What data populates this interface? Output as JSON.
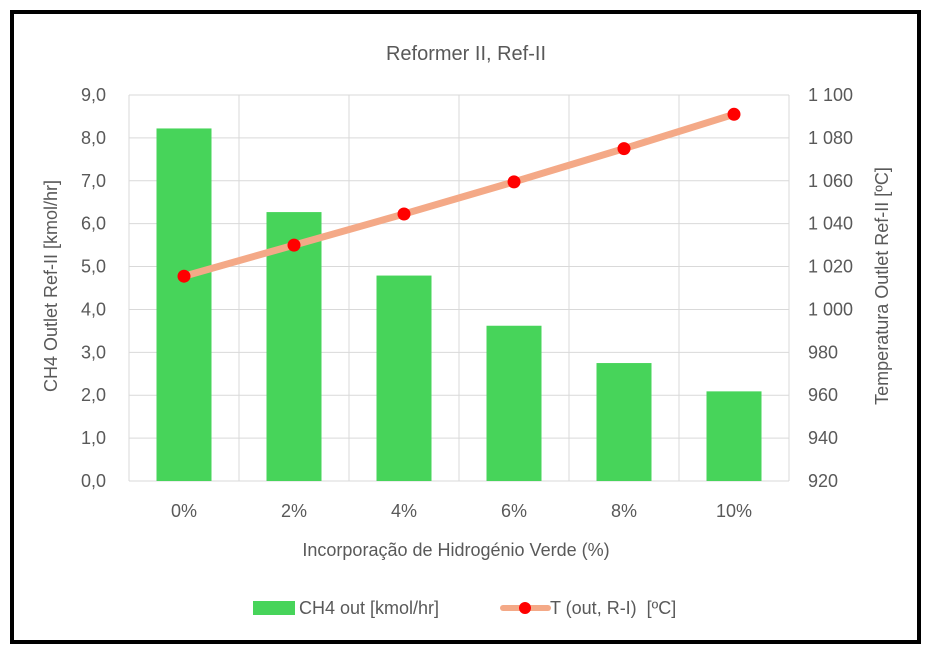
{
  "chart_data": {
    "type": "bar+line",
    "title": "Reformer II, Ref-II",
    "xlabel": "Incorporação de Hidrogénio Verde (%)",
    "ylabel_left": "CH4 Outlet Ref-II [kmol/hr]",
    "ylabel_right": "Temperatura Outlet Ref-II [ºC]",
    "categories": [
      "0%",
      "2%",
      "4%",
      "6%",
      "8%",
      "10%"
    ],
    "y_left": {
      "min": 0,
      "max": 9,
      "step": 1,
      "tick_labels": [
        "0,0",
        "1,0",
        "2,0",
        "3,0",
        "4,0",
        "5,0",
        "6,0",
        "7,0",
        "8,0",
        "9,0"
      ]
    },
    "y_right": {
      "min": 920,
      "max": 1100,
      "step": 20,
      "tick_labels": [
        "920",
        "940",
        "960",
        "980",
        "1 000",
        "1 020",
        "1 040",
        "1 060",
        "1 080",
        "1 100"
      ]
    },
    "series": [
      {
        "name": "CH4 out [kmol/hr]",
        "type": "bar",
        "axis": "left",
        "color": "#47d45a",
        "values": [
          8.22,
          6.27,
          4.79,
          3.62,
          2.75,
          2.09
        ]
      },
      {
        "name": "T (out, R-I)  [ºC]",
        "type": "line",
        "axis": "right",
        "line_color": "#f4a987",
        "marker_color": "#ff0000",
        "values": [
          1015.5,
          1030.0,
          1044.5,
          1059.5,
          1075.0,
          1091.0
        ]
      }
    ],
    "grid": true,
    "legend": "bottom"
  }
}
